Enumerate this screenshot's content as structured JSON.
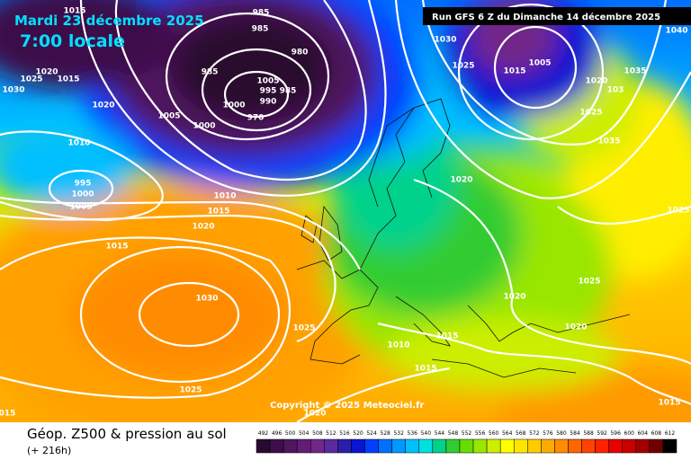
{
  "header": {
    "date": "Mardi 23 décembre 2025",
    "time": "7:00 locale",
    "run": "Run GFS 6 Z du Dimanche 14 décembre 2025"
  },
  "copyright": "Copyright © 2025 Meteociel.fr",
  "footer": {
    "title": "Géop. Z500 & pression au sol",
    "lead": "(+ 216h)"
  },
  "isobar_labels": [
    "1015",
    "985",
    "985",
    "980",
    "985",
    "1005",
    "995",
    "985",
    "990",
    "1000",
    "970",
    "1000",
    "1005",
    "1020",
    "1025",
    "1015",
    "1030",
    "1020",
    "1010",
    "995",
    "1000",
    "1005",
    "1010",
    "1015",
    "1020",
    "1015",
    "1030",
    "1025",
    "1010",
    "1015",
    "1015",
    "1025",
    "1020",
    "015",
    "1030",
    "1025",
    "1015",
    "1005",
    "1020",
    "103",
    "1035",
    "1025",
    "1035",
    "1040",
    "1020",
    "1025",
    "1025",
    "1020",
    "1020",
    "1015"
  ],
  "scale": {
    "labels": [
      492,
      496,
      500,
      504,
      508,
      512,
      516,
      520,
      524,
      528,
      532,
      536,
      540,
      544,
      548,
      552,
      556,
      560,
      564,
      568,
      572,
      576,
      580,
      584,
      588,
      592,
      596,
      600,
      604,
      608,
      612
    ],
    "colors": [
      "#2a0a2e",
      "#3d0f4a",
      "#501660",
      "#621d76",
      "#72268a",
      "#5a2a9e",
      "#2a1eaa",
      "#0a14d2",
      "#0040ff",
      "#0070ff",
      "#0099ff",
      "#00c0ff",
      "#00e0e0",
      "#00d28c",
      "#33cc33",
      "#66dd00",
      "#99e600",
      "#ccee00",
      "#ffff00",
      "#ffe600",
      "#ffcc00",
      "#ffaa00",
      "#ff8c00",
      "#ff6600",
      "#ff4400",
      "#ff2200",
      "#e60000",
      "#c80000",
      "#a00000",
      "#700000",
      "#000000"
    ]
  }
}
